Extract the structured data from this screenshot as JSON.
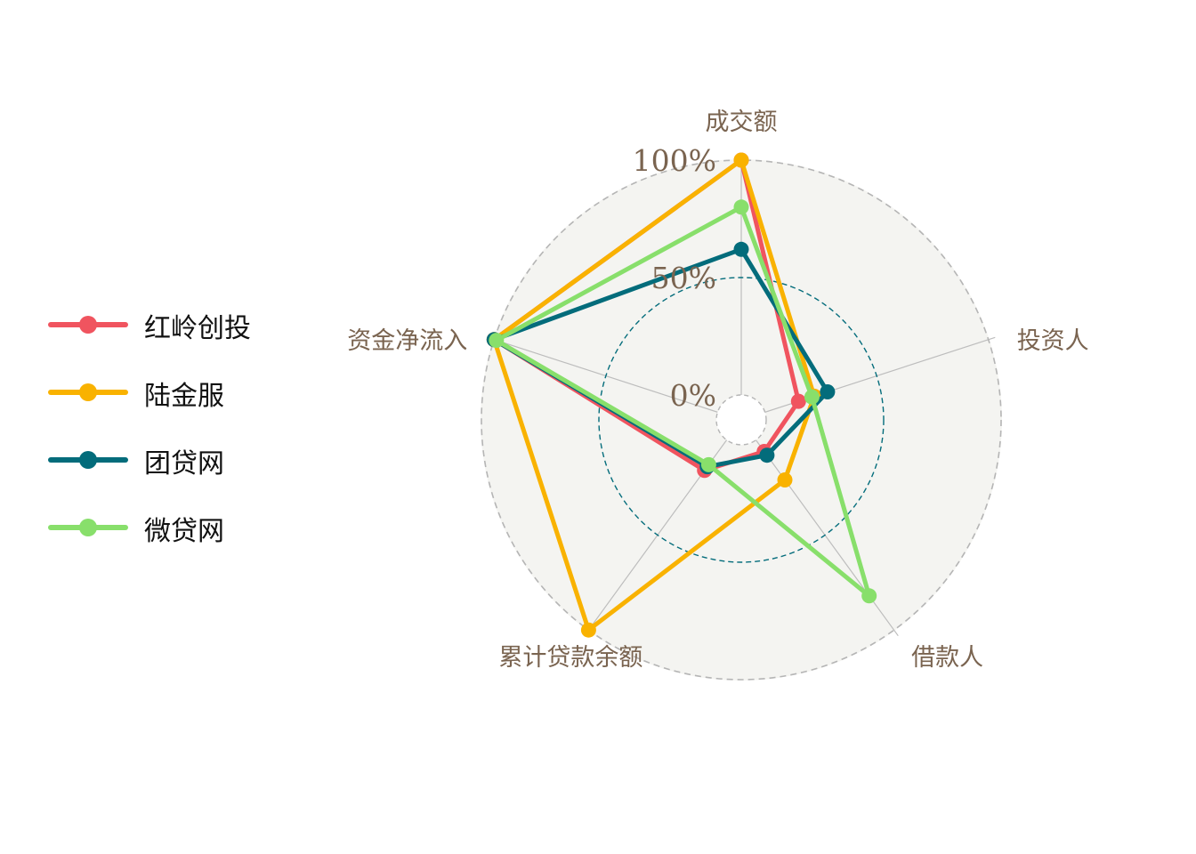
{
  "chart_data": {
    "type": "radar",
    "axes": [
      "成交额",
      "投资人",
      "借款人",
      "累计贷款余额",
      "资金净流入"
    ],
    "grid_labels": [
      "0%",
      "50%",
      "100%"
    ],
    "range": [
      0,
      100
    ],
    "series": [
      {
        "name": "红岭创投",
        "color": "#f0545f",
        "values": [
          100,
          15,
          6,
          16,
          100
        ]
      },
      {
        "name": "陆金服",
        "color": "#f9b200",
        "values": [
          100,
          22,
          21,
          100,
          100
        ]
      },
      {
        "name": "团贷网",
        "color": "#036c7b",
        "values": [
          62,
          28,
          8,
          14,
          100
        ]
      },
      {
        "name": "微贷网",
        "color": "#88df6b",
        "values": [
          80,
          21,
          82,
          13,
          99
        ]
      }
    ]
  },
  "legend": {
    "items": [
      {
        "label": "红岭创投",
        "color": "#f0545f"
      },
      {
        "label": "陆金服",
        "color": "#f9b200"
      },
      {
        "label": "团贷网",
        "color": "#036c7b"
      },
      {
        "label": "微贷网",
        "color": "#88df6b"
      }
    ]
  }
}
